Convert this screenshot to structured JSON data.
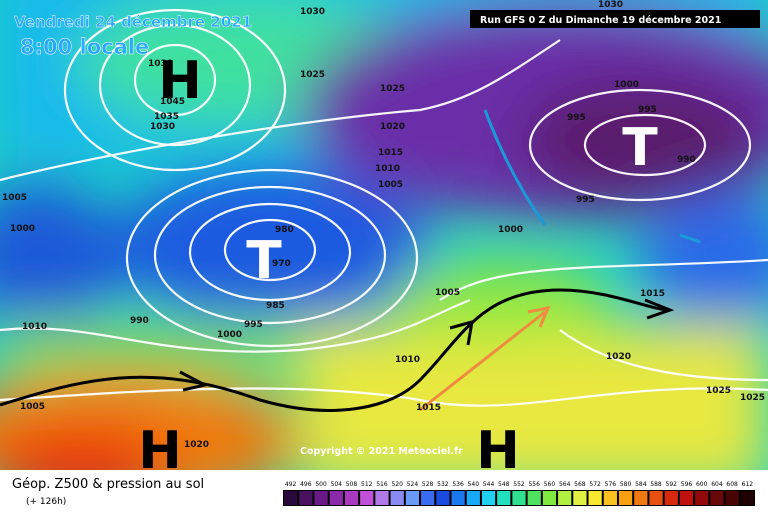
{
  "header": {
    "date": "Vendredi 24 décembre 2021",
    "time": "8:00 locale",
    "run": "Run GFS 0 Z du Dimanche 19 décembre 2021"
  },
  "pressure_labels": [
    "1030",
    "1045",
    "1035",
    "1030",
    "1025",
    "1025",
    "1020",
    "1015",
    "1010",
    "1005",
    "1005",
    "1000",
    "980",
    "970",
    "985",
    "995",
    "990",
    "1000",
    "1010",
    "1005",
    "1010",
    "1015",
    "1005",
    "1020",
    "1000",
    "995",
    "995",
    "990",
    "995",
    "1000",
    "1015",
    "1020",
    "1025",
    "1025",
    "1030",
    "1030"
  ],
  "centers": [
    "H",
    "T",
    "T",
    "H",
    "H"
  ],
  "copyright": "Copyright © 2021 Meteociel.fr",
  "footer": {
    "title": "Géop. Z500 & pression au sol",
    "lead": "(+ 126h)"
  },
  "colorbar": [
    "492",
    "496",
    "500",
    "504",
    "508",
    "512",
    "516",
    "520",
    "524",
    "528",
    "532",
    "536",
    "540",
    "544",
    "548",
    "552",
    "556",
    "560",
    "564",
    "568",
    "572",
    "576",
    "580",
    "584",
    "588",
    "592",
    "596",
    "600",
    "604",
    "608",
    "612"
  ]
}
